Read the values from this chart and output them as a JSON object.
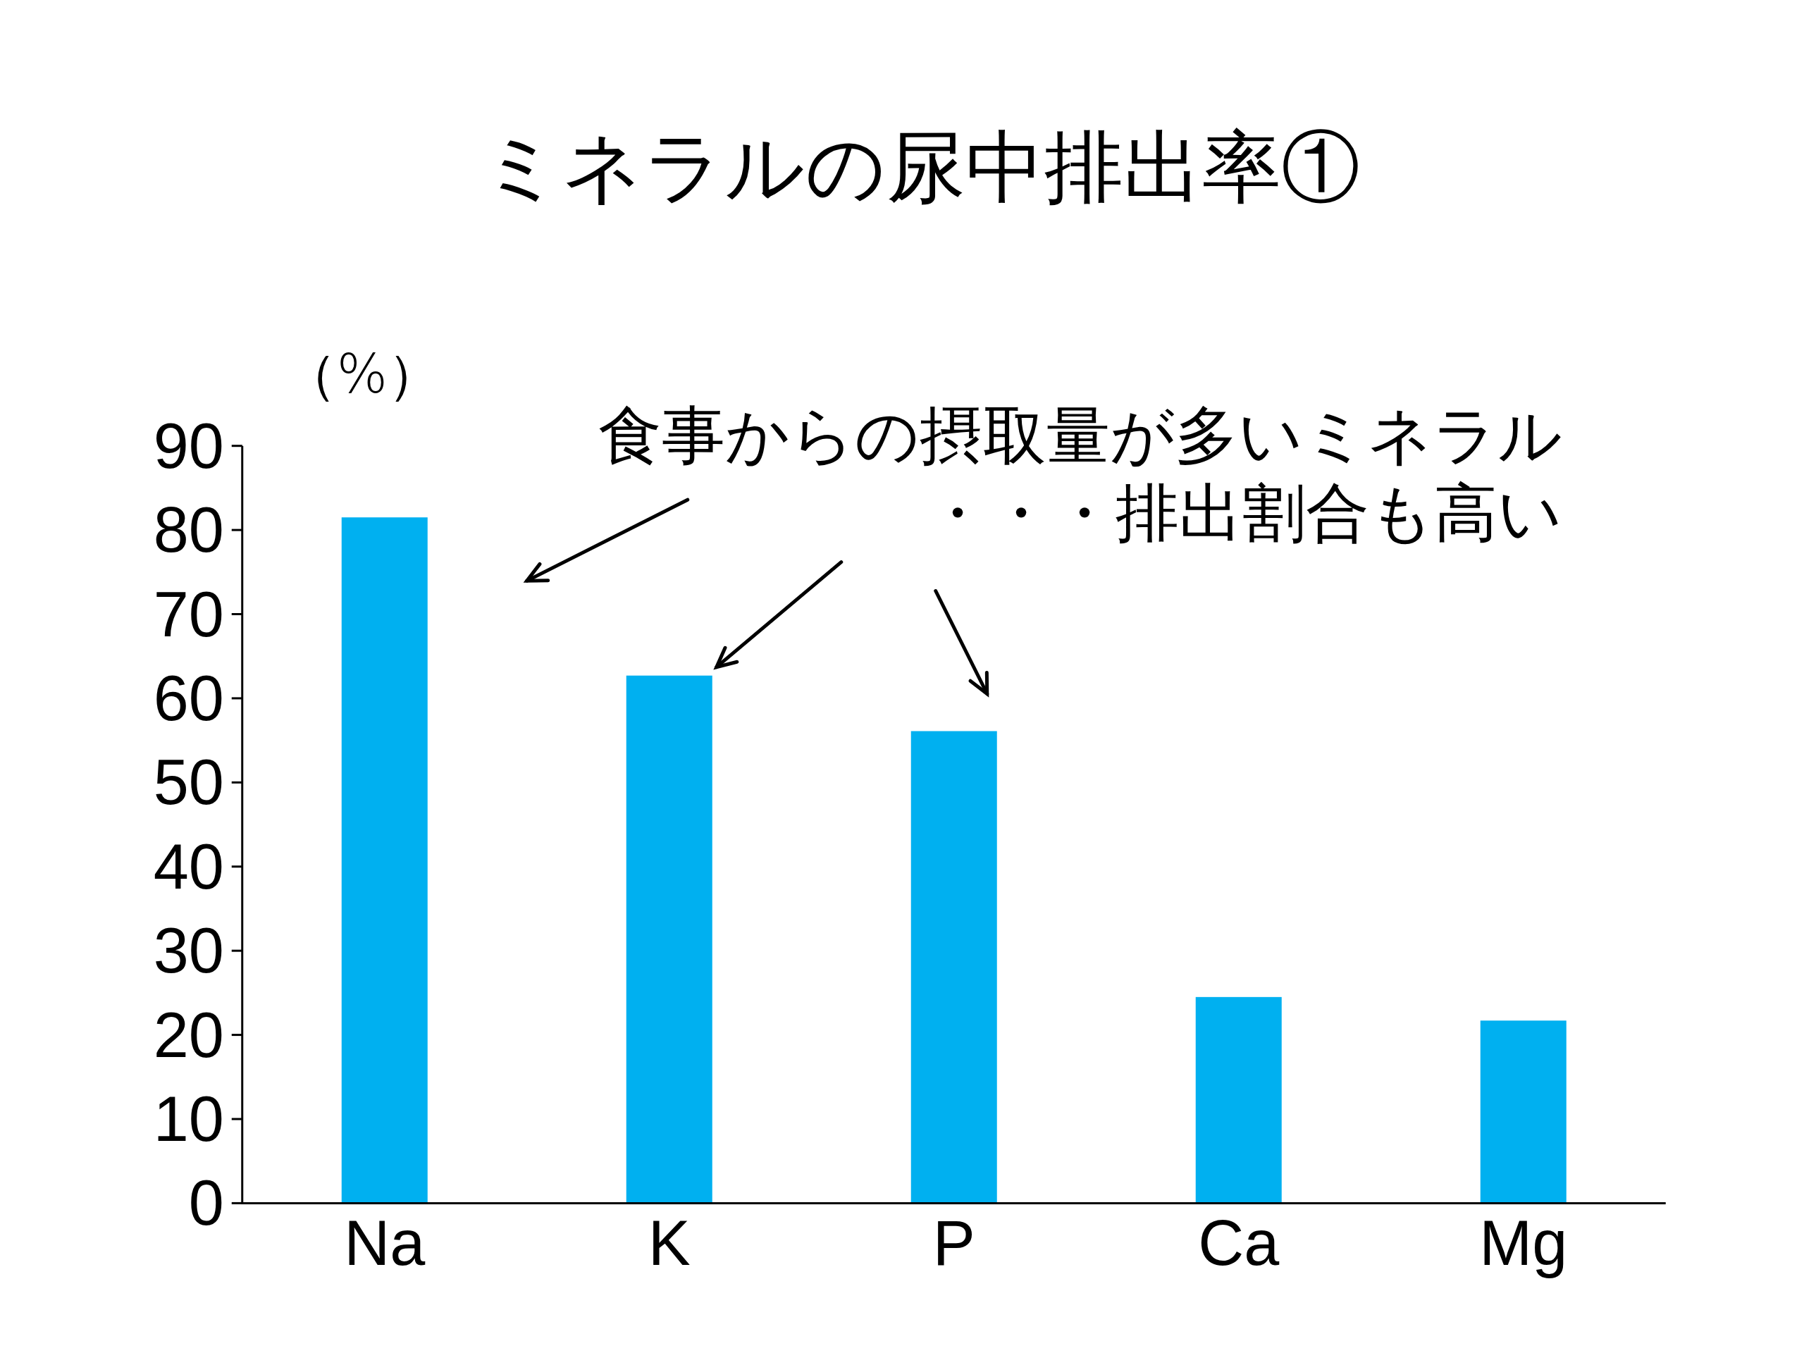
{
  "chart_data": {
    "type": "bar",
    "title": "ミネラルの尿中排出率①",
    "ylabel": "（%）",
    "categories": [
      "Na",
      "K",
      "P",
      "Ca",
      "Mg"
    ],
    "values": [
      81.5,
      62.7,
      56.1,
      24.5,
      21.7
    ],
    "color": "#00b0f0",
    "ylim": [
      0,
      90
    ],
    "yticks": [
      0,
      10,
      20,
      30,
      40,
      50,
      60,
      70,
      80,
      90
    ],
    "annotations": [
      "食事からの摂取量が多いミネラル",
      "・・・排出割合も高い"
    ]
  }
}
